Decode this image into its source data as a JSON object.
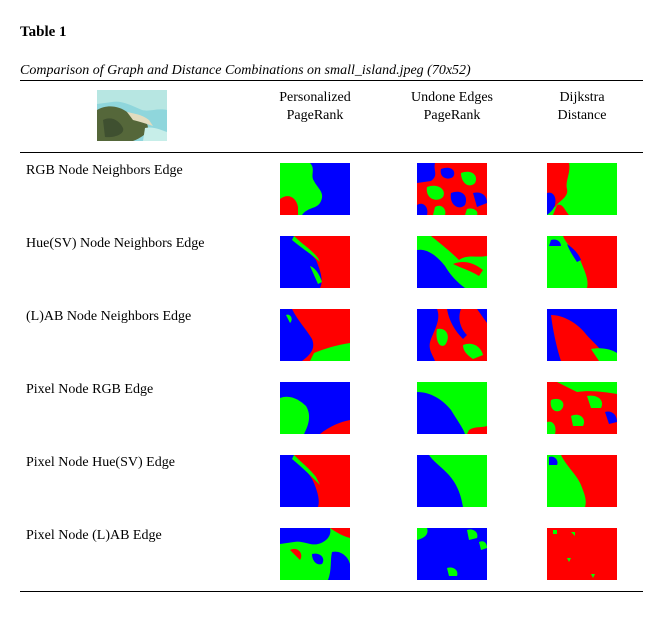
{
  "table": {
    "label": "Table 1",
    "caption": "Comparison of Graph and Distance Combinations on small_island.jpeg (70x52)",
    "columns": [
      {
        "line1": "Personalized",
        "line2": "PageRank"
      },
      {
        "line1": "Undone Edges",
        "line2": "PageRank"
      },
      {
        "line1": "Dijkstra",
        "line2": "Distance"
      }
    ],
    "rows": [
      {
        "label": "RGB Node Neighbors Edge"
      },
      {
        "label": "Hue(SV) Node Neighbors Edge"
      },
      {
        "label": "(L)AB Node Neighbors Edge"
      },
      {
        "label": "Pixel Node RGB Edge"
      },
      {
        "label": "Pixel Node Hue(SV) Edge"
      },
      {
        "label": "Pixel Node (L)AB Edge"
      }
    ]
  },
  "colors": {
    "red": "#ff0000",
    "green": "#00ff00",
    "blue": "#0000ff",
    "water": "#7fd1d6",
    "land": "#5a6b3a",
    "sand": "#d9d4b0"
  }
}
